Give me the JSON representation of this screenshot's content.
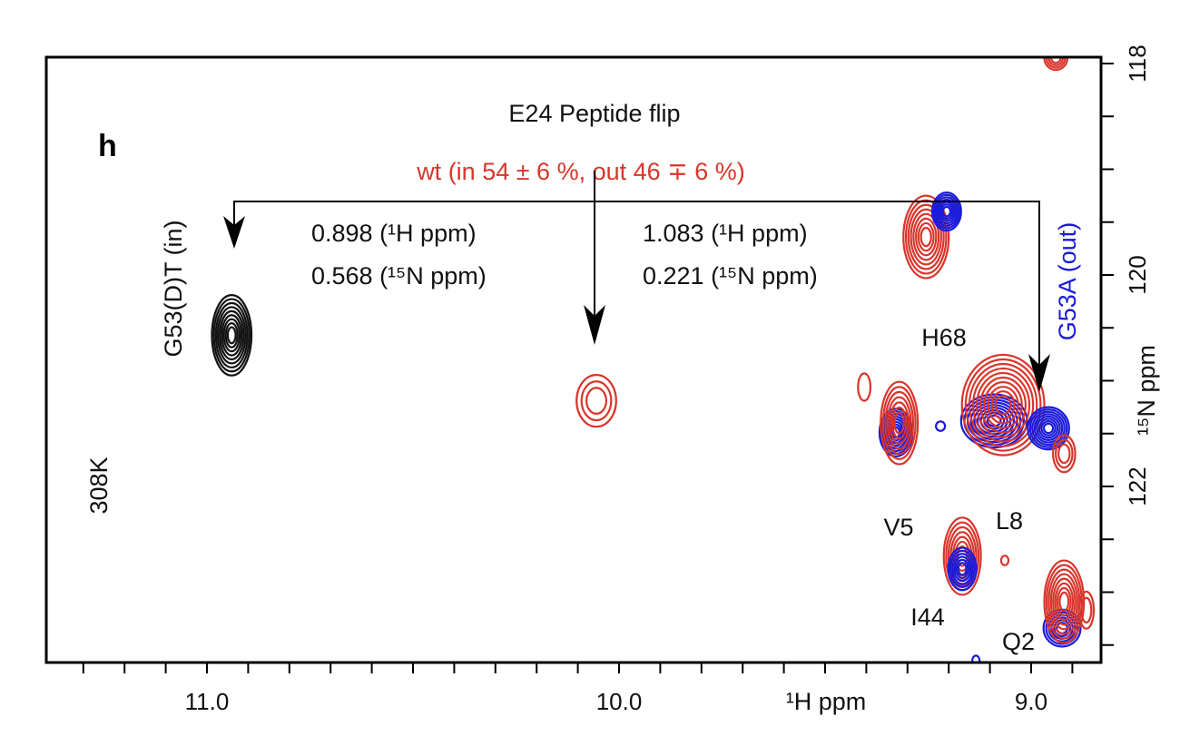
{
  "chart_data": {
    "type": "contour",
    "panel_label": "h",
    "title": "E24 Peptide flip",
    "subtitle": "wt (in 54 ± 6 %, out 46 ∓ 6 %)",
    "temperature_label": "308K",
    "xlabel": "¹H ppm",
    "ylabel": "¹⁵N ppm",
    "xlim": [
      11.39,
      8.83
    ],
    "ylim": [
      123.66,
      117.93
    ],
    "x_reversed": true,
    "y_axis_side": "right",
    "x_ticks": [
      {
        "value": 11.0,
        "label": "11.0"
      },
      {
        "value": 10.0,
        "label": "10.0"
      },
      {
        "value": 9.0,
        "label": "9.0"
      }
    ],
    "y_ticks": [
      {
        "value": 118,
        "label": "118"
      },
      {
        "value": 120,
        "label": "120"
      },
      {
        "value": 122,
        "label": "122"
      }
    ],
    "colors": {
      "G53(D)T": "#111111",
      "wt": "#d9352b",
      "G53A": "#1a1adb"
    },
    "annotations": {
      "in_label": "G53(D)T (in)",
      "out_label": "G53A (out)",
      "in_shift_h": "0.898 (¹H ppm)",
      "in_shift_n": "0.568 (¹⁵N ppm)",
      "out_shift_h": "1.083 (¹H ppm)",
      "out_shift_n": "0.221 (¹⁵N ppm)"
    },
    "residue_labels": [
      {
        "text": "H68"
      },
      {
        "text": "V5"
      },
      {
        "text": "L8"
      },
      {
        "text": "I44"
      },
      {
        "text": "Q2"
      }
    ],
    "peaks": [
      {
        "series": "G53(D)T",
        "h": 10.94,
        "n": 120.57,
        "wh": 0.048,
        "wn": 0.76,
        "levels": 9
      },
      {
        "series": "wt",
        "h": 10.055,
        "n": 121.19,
        "wh": 0.048,
        "wn": 0.49,
        "levels": 3
      },
      {
        "series": "wt",
        "h": 9.255,
        "n": 119.64,
        "wh": 0.055,
        "wn": 0.78,
        "levels": 8
      },
      {
        "series": "G53A",
        "h": 9.205,
        "n": 119.4,
        "wh": 0.035,
        "wn": 0.36,
        "levels": 7
      },
      {
        "series": "wt",
        "h": 8.94,
        "n": 117.95,
        "wh": 0.028,
        "wn": 0.22,
        "levels": 4
      },
      {
        "series": "wt",
        "h": 9.405,
        "n": 121.06,
        "wh": 0.015,
        "wn": 0.26,
        "levels": 1
      },
      {
        "series": "G53A",
        "h": 9.328,
        "n": 121.49,
        "wh": 0.04,
        "wn": 0.45,
        "levels": 8
      },
      {
        "series": "wt",
        "h": 9.32,
        "n": 121.4,
        "wh": 0.045,
        "wn": 0.78,
        "levels": 7
      },
      {
        "series": "G53A",
        "h": 9.22,
        "n": 121.43,
        "wh": 0.011,
        "wn": 0.09,
        "levels": 1
      },
      {
        "series": "G53A",
        "h": 9.09,
        "n": 121.38,
        "wh": 0.08,
        "wn": 0.5,
        "levels": 9
      },
      {
        "series": "wt",
        "h": 9.068,
        "n": 121.23,
        "wh": 0.1,
        "wn": 0.95,
        "levels": 10
      },
      {
        "series": "G53A",
        "h": 8.958,
        "n": 121.45,
        "wh": 0.05,
        "wn": 0.4,
        "levels": 8
      },
      {
        "series": "wt",
        "h": 8.92,
        "n": 121.69,
        "wh": 0.027,
        "wn": 0.35,
        "levels": 3
      },
      {
        "series": "wt",
        "h": 9.167,
        "n": 122.66,
        "wh": 0.045,
        "wn": 0.73,
        "levels": 7
      },
      {
        "series": "G53A",
        "h": 9.167,
        "n": 122.78,
        "wh": 0.034,
        "wn": 0.4,
        "levels": 6
      },
      {
        "series": "wt",
        "h": 9.064,
        "n": 122.7,
        "wh": 0.009,
        "wn": 0.09,
        "levels": 1
      },
      {
        "series": "G53A",
        "h": 8.925,
        "n": 123.34,
        "wh": 0.045,
        "wn": 0.35,
        "levels": 6
      },
      {
        "series": "wt",
        "h": 8.92,
        "n": 123.09,
        "wh": 0.048,
        "wn": 0.78,
        "levels": 8
      },
      {
        "series": "wt",
        "h": 8.866,
        "n": 123.17,
        "wh": 0.018,
        "wn": 0.35,
        "levels": 2
      },
      {
        "series": "G53A",
        "h": 9.134,
        "n": 123.65,
        "wh": 0.009,
        "wn": 0.1,
        "levels": 1
      }
    ]
  }
}
